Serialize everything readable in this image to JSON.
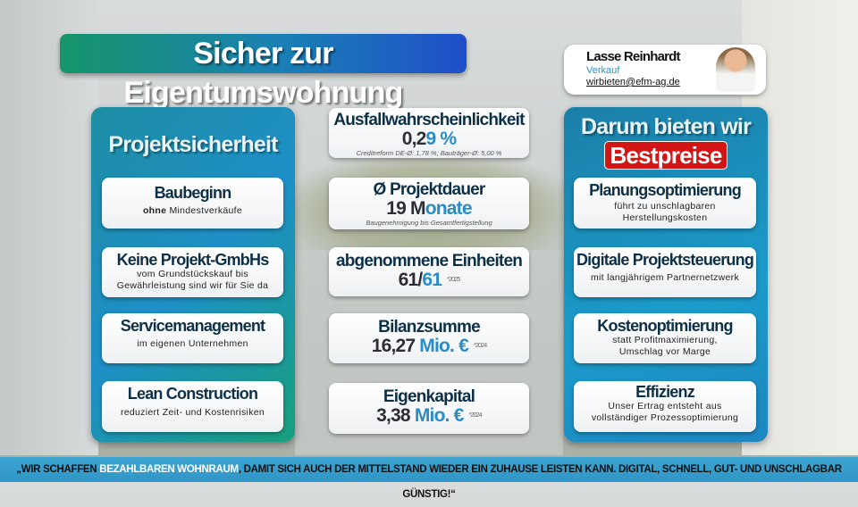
{
  "title": "Sicher zur Eigentumswohnung",
  "contact": {
    "name": "Lasse Reinhardt",
    "role": "Verkauf",
    "email": "wirbieten@efm-ag.de"
  },
  "left": {
    "title": "Projektsicherheit",
    "cards": [
      {
        "heading": "Baubeginn",
        "bold": "ohne",
        "text": "Mindestverkäufe"
      },
      {
        "heading": "Keine Projekt-GmbHs",
        "text": "vom Grundstückskauf bis Gewährleistung sind wir für Sie da"
      },
      {
        "heading": "Servicemanagement",
        "text": "im eigenen Unternehmen"
      },
      {
        "heading": "Lean Construction",
        "text": "reduziert Zeit- und Kostenrisiken"
      }
    ]
  },
  "middle": [
    {
      "heading": "Ausfallwahrscheinlichkeit",
      "value_a": "0,2",
      "value_b": "9 %",
      "note": "Creditreform DE-Ø: 1,78 %; Bauträger-Ø: 5,00 %"
    },
    {
      "heading": "Ø Projektdauer",
      "value_a": "19 M",
      "value_b": "onate",
      "note": "Baugenehmigung bis Gesamtfertigstellung"
    },
    {
      "heading": "abgenommene Einheiten",
      "value_a": "61/",
      "value_b": "61",
      "year": "*2025"
    },
    {
      "heading": "Bilanzsumme",
      "value_a": "16,27 ",
      "value_b": "Mio. €",
      "year": "*2024"
    },
    {
      "heading": "Eigenkapital",
      "value_a": "3,38 ",
      "value_b": "Mio. €",
      "year": "*2024"
    }
  ],
  "right": {
    "title": "Darum bieten wir",
    "badge": "Bestpreise",
    "cards": [
      {
        "heading": "Planungsoptimierung",
        "text": "führt zu unschlagbaren Herstellungskosten"
      },
      {
        "heading": "Digitale Projektsteuerung",
        "text": "mit langjährigem Partnernetzwerk"
      },
      {
        "heading": "Kostenoptimierung",
        "text": "statt Profitmaximierung, Umschlag vor Marge"
      },
      {
        "heading": "Effizienz",
        "text": "Unser Ertrag entsteht aus vollständiger Prozessoptimierung"
      }
    ]
  },
  "footer": {
    "pre": "„WIR SCHAFFEN ",
    "highlight": "BEZAHLBAREN WOHNRAUM",
    "post": ", DAMIT SICH AUCH DER MITTELSTAND WIEDER EIN ZUHAUSE LEISTEN KANN. DIGITAL, SCHNELL, GUT- UND UNSCHLAGBAR GÜNSTIG!“"
  },
  "colors": {
    "accent": "#2a8cc4",
    "badge": "#d41515",
    "heading": "#0e3047"
  }
}
